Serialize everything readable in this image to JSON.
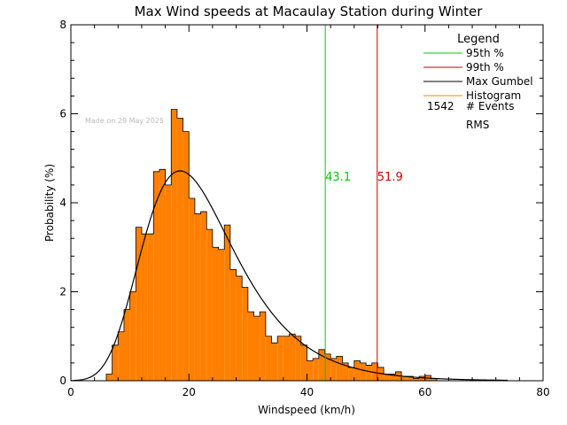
{
  "chart_data": {
    "type": "bar",
    "title": "Max Wind speeds at Macaulay Station during Winter",
    "xlabel": "Windspeed (km/h)",
    "ylabel": "Probability  (%)",
    "xlim": [
      0,
      80
    ],
    "ylim": [
      0,
      8
    ],
    "xticks": [
      0,
      20,
      40,
      60,
      80
    ],
    "yticks": [
      0,
      2,
      4,
      6,
      8
    ],
    "grid": false,
    "watermark": "Made on 29 May 2025",
    "bin_width": 1,
    "histogram": {
      "name": "Histogram",
      "color": "#ff8000",
      "x_start": [
        6,
        7,
        8,
        9,
        10,
        11,
        12,
        13,
        14,
        15,
        16,
        17,
        18,
        19,
        20,
        21,
        22,
        23,
        24,
        25,
        26,
        27,
        28,
        29,
        30,
        31,
        32,
        33,
        34,
        35,
        36,
        37,
        38,
        39,
        40,
        41,
        42,
        43,
        44,
        45,
        46,
        47,
        48,
        49,
        50,
        51,
        52,
        53,
        54,
        55,
        56,
        57,
        58,
        59,
        60,
        61
      ],
      "values": [
        0.15,
        0.8,
        1.1,
        1.6,
        2.0,
        3.45,
        3.3,
        3.3,
        4.7,
        4.75,
        4.4,
        6.1,
        5.9,
        5.6,
        4.1,
        3.75,
        3.8,
        3.4,
        3.0,
        2.95,
        3.5,
        2.5,
        2.35,
        2.1,
        1.55,
        1.45,
        1.55,
        1.0,
        0.85,
        1.0,
        1.0,
        1.05,
        1.0,
        0.8,
        0.45,
        0.5,
        0.7,
        0.6,
        0.5,
        0.55,
        0.4,
        0.3,
        0.45,
        0.4,
        0.35,
        0.4,
        0.3,
        0.15,
        0.15,
        0.2,
        0.1,
        0.1,
        0.05,
        0.1,
        0.12,
        0.05
      ]
    },
    "gumbel": {
      "name": "Max Gumbel",
      "color": "#000000",
      "location": 18.5,
      "scale": 7.8,
      "x_range": [
        0,
        74
      ]
    },
    "percentiles": [
      {
        "name": "95th %",
        "value": 43.1,
        "label": "43.1",
        "color": "#00cc00"
      },
      {
        "name": "99th %",
        "value": 51.9,
        "label": "51.9",
        "color": "#cc0000"
      }
    ],
    "percentile_label_y": 4.6,
    "legend": {
      "title": "Legend",
      "placement": "top-right",
      "entries": [
        {
          "label": "95th %",
          "color": "#00cc00"
        },
        {
          "label": "99th %",
          "color": "#cc0000"
        },
        {
          "label": "Max Gumbel",
          "color": "#000000"
        },
        {
          "label": "Histogram",
          "color": "#ff8000"
        }
      ],
      "events_count": "1542",
      "events_label": "# Events",
      "rms_label": "RMS"
    }
  }
}
